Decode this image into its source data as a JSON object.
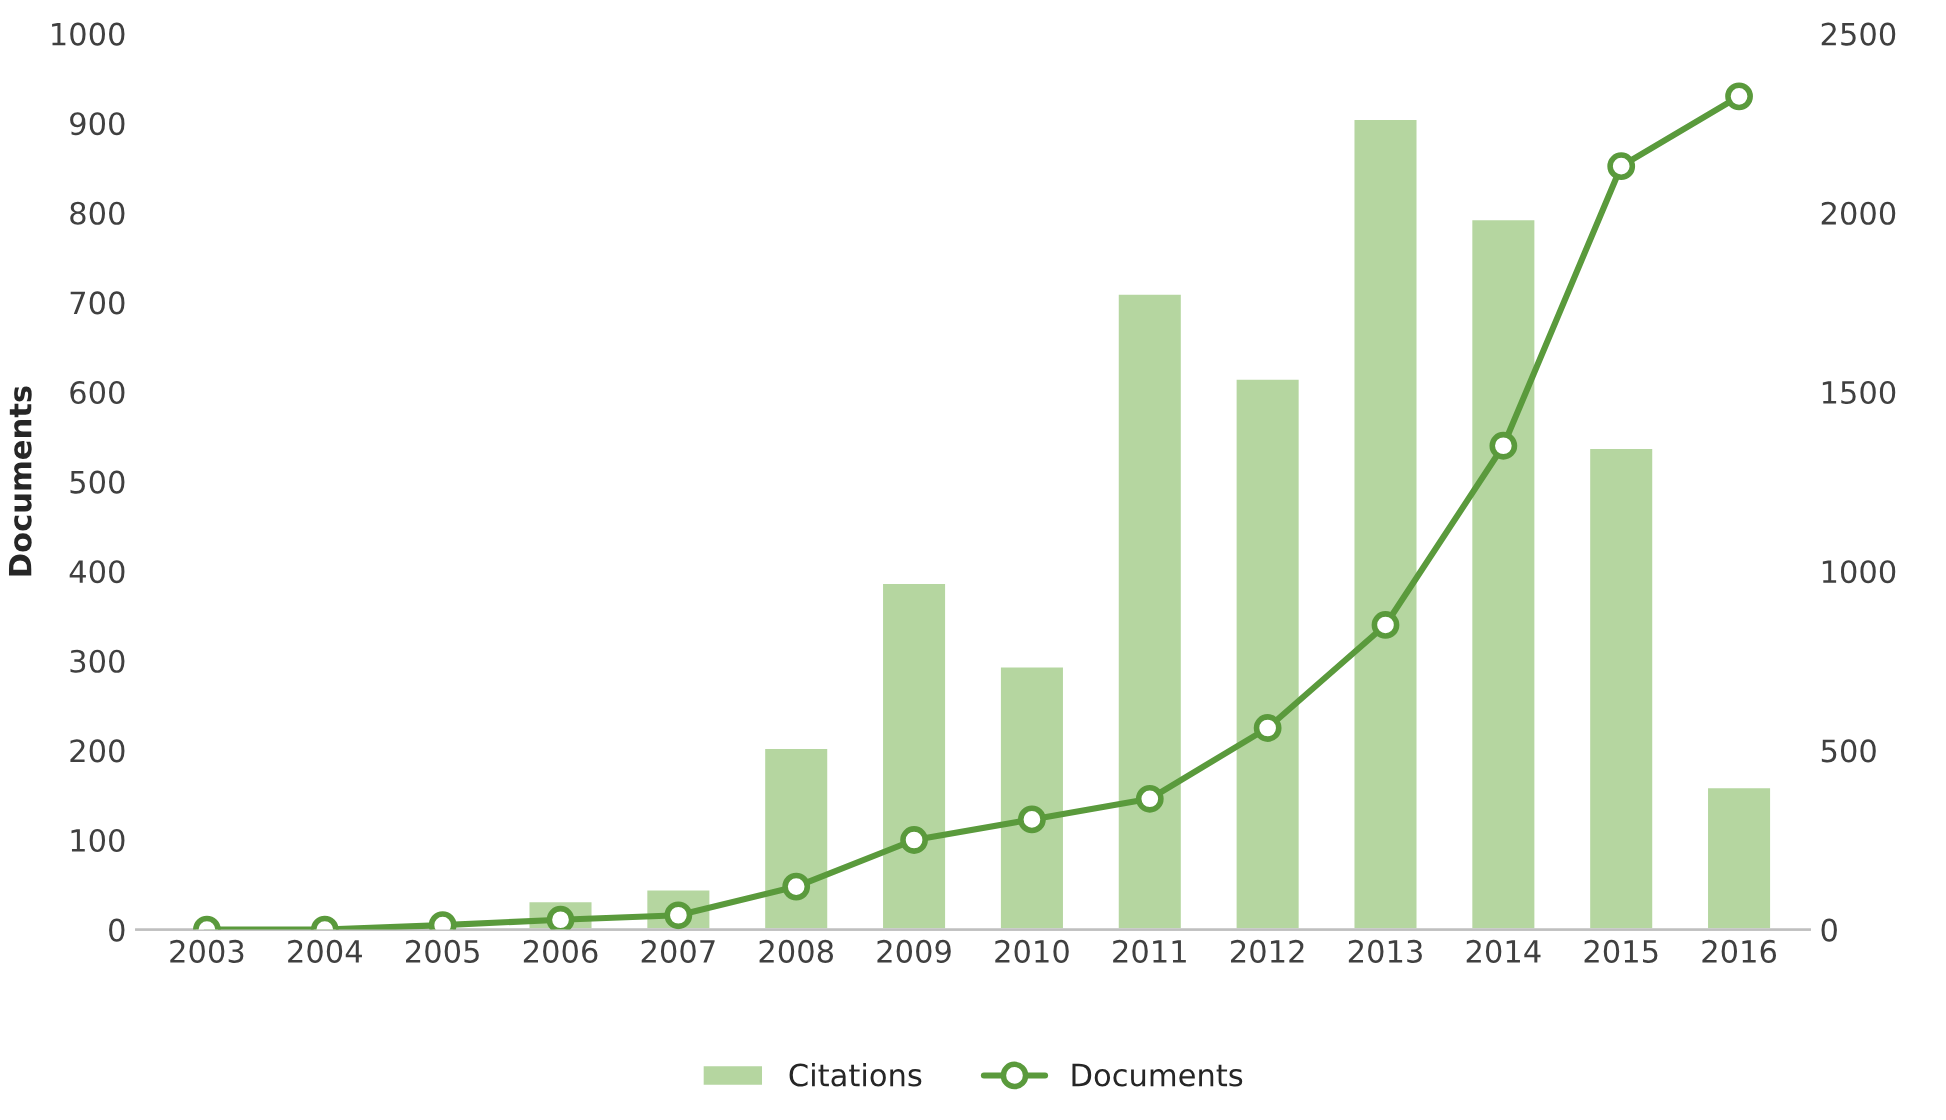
{
  "chart_data": {
    "type": "bar",
    "ylabel": "Documents",
    "categories": [
      "2003",
      "2004",
      "2005",
      "2006",
      "2007",
      "2008",
      "2009",
      "2010",
      "2011",
      "2012",
      "2013",
      "2014",
      "2015",
      "2016"
    ],
    "series": [
      {
        "name": "Citations",
        "axis": "y2",
        "color": "#b5d6a0",
        "values": [
          null,
          null,
          null,
          80,
          113,
          508,
          968,
          735,
          1775,
          1538,
          2263,
          1983,
          1345,
          398
        ]
      },
      {
        "name": "Documents",
        "type": "line",
        "color": "#5a9a3c",
        "marker": "circle",
        "values": [
          0,
          0,
          5,
          11,
          16,
          48,
          100,
          123,
          146,
          225,
          340,
          540,
          852,
          930
        ]
      }
    ],
    "ylim": [
      0,
      1000
    ],
    "yticks": [
      0,
      100,
      200,
      300,
      400,
      500,
      600,
      700,
      800,
      900,
      1000
    ],
    "y2lim": [
      0,
      2500
    ],
    "y2ticks": [
      0,
      500,
      1000,
      1500,
      2000,
      2500
    ],
    "grid": false,
    "legend": "bottom"
  }
}
